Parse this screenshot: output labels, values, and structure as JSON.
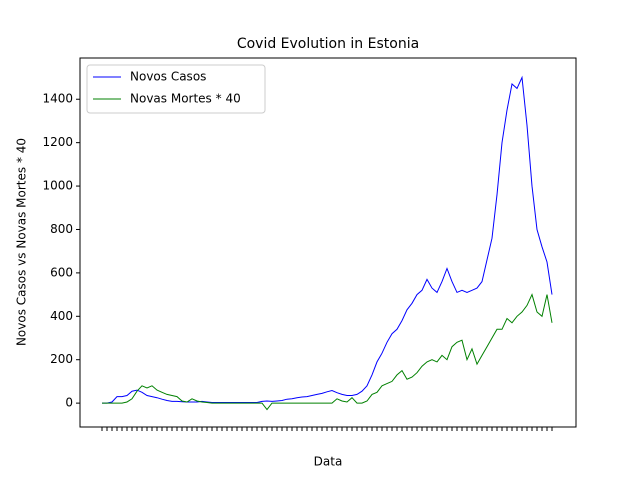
{
  "chart_data": {
    "type": "line",
    "title": "Covid Evolution in Estonia",
    "xlabel": "Data",
    "ylabel": "Novos Casos vs Novas Mortes * 40",
    "categories": [
      null,
      null,
      null,
      null,
      null,
      null,
      null,
      null,
      null,
      null,
      null,
      null,
      null,
      null,
      null,
      null,
      null,
      null,
      null,
      null,
      null,
      null,
      null,
      null,
      null,
      null,
      null,
      null,
      null,
      null,
      null,
      null,
      null,
      null,
      null,
      null,
      null,
      null,
      null,
      null,
      null,
      null,
      null,
      null,
      null,
      null,
      null,
      null,
      null,
      null,
      null,
      null,
      null,
      null,
      null,
      null,
      null,
      null,
      null,
      null,
      null,
      null,
      null,
      null,
      null,
      null,
      null,
      null,
      null,
      null,
      null,
      null,
      null,
      null,
      null,
      null,
      null,
      null,
      null,
      null,
      null,
      null,
      null,
      null,
      null,
      null,
      null,
      null,
      null,
      null,
      null
    ],
    "series": [
      {
        "name": "Novos Casos",
        "color": "#0000ff",
        "values": [
          0,
          0,
          5,
          30,
          30,
          35,
          55,
          60,
          50,
          35,
          30,
          25,
          18,
          12,
          8,
          8,
          6,
          5,
          5,
          5,
          8,
          5,
          3,
          3,
          3,
          3,
          3,
          3,
          3,
          3,
          3,
          3,
          8,
          10,
          8,
          10,
          12,
          18,
          20,
          25,
          28,
          30,
          35,
          40,
          45,
          52,
          58,
          48,
          40,
          35,
          35,
          40,
          55,
          80,
          130,
          190,
          230,
          280,
          320,
          340,
          380,
          430,
          460,
          500,
          520,
          570,
          530,
          510,
          560,
          620,
          560,
          510,
          520,
          510,
          520,
          530,
          560,
          660,
          760,
          960,
          1200,
          1350,
          1470,
          1450,
          1500,
          1280,
          1000,
          800,
          720,
          650,
          500
        ]
      },
      {
        "name": "Novas Mortes * 40",
        "color": "#008000",
        "values": [
          0,
          0,
          0,
          0,
          0,
          5,
          20,
          55,
          80,
          70,
          80,
          60,
          50,
          40,
          35,
          30,
          10,
          5,
          20,
          10,
          5,
          3,
          0,
          0,
          0,
          0,
          0,
          0,
          0,
          0,
          0,
          0,
          0,
          -30,
          0,
          0,
          0,
          0,
          0,
          0,
          0,
          0,
          0,
          0,
          0,
          0,
          0,
          20,
          10,
          5,
          25,
          0,
          0,
          10,
          40,
          50,
          80,
          90,
          100,
          130,
          150,
          110,
          120,
          140,
          170,
          190,
          200,
          190,
          220,
          200,
          260,
          280,
          290,
          200,
          250,
          180,
          220,
          260,
          300,
          340,
          340,
          390,
          370,
          400,
          420,
          450,
          500,
          420,
          400,
          500,
          370
        ]
      }
    ],
    "ylim": [
      -110,
      1590
    ],
    "yticks": [
      0,
      200,
      400,
      600,
      800,
      1000,
      1200,
      1400
    ],
    "legend": "upper left"
  }
}
